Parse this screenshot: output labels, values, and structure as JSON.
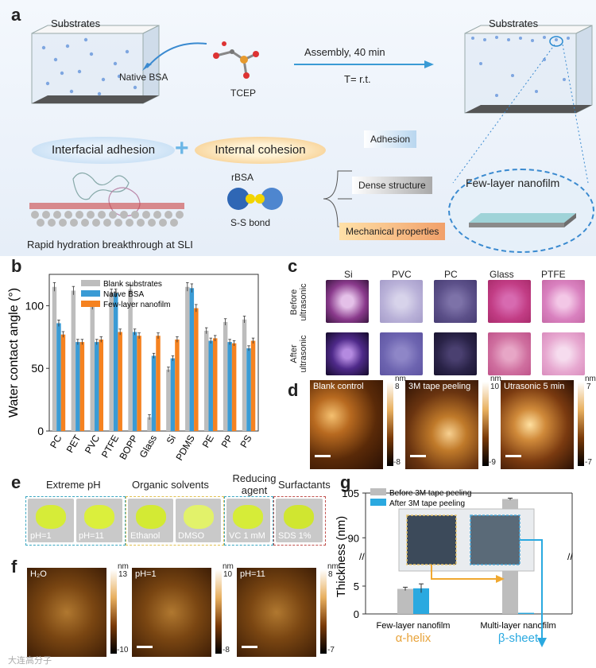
{
  "panel_a": {
    "label": "a",
    "substrates_left": "Substrates",
    "substrates_right": "Substrates",
    "native_bsa": "Native BSA",
    "tcep": "TCEP",
    "assembly": "Assembly, 40 min",
    "temperature": "T= r.t.",
    "interfacial_adhesion": "Interfacial adhesion",
    "plus": "+",
    "internal_cohesion": "Internal cohesion",
    "rbsa": "rBSA",
    "ss_bond": "S-S bond",
    "rapid_hydration": "Rapid hydration breakthrough at SLI",
    "adhesion": "Adhesion",
    "dense_structure": "Dense structure",
    "mechanical_properties": "Mechanical properties",
    "few_layer_nanofilm": "Few-layer nanofilm"
  },
  "panel_b": {
    "label": "b",
    "chart_data": {
      "type": "bar",
      "ylabel": "Water contact angle (°)",
      "ylim": [
        0,
        125
      ],
      "yticks": [
        0,
        50,
        100
      ],
      "categories": [
        "PC",
        "PET",
        "PVC",
        "PTFE",
        "BOPP",
        "Glass",
        "Si",
        "PDMS",
        "PE",
        "PP",
        "PS"
      ],
      "series": [
        {
          "name": "Blank substrates",
          "color": "#bdbdbd",
          "values": [
            115,
            112,
            100,
            110,
            113,
            11,
            49,
            115,
            80,
            87,
            89
          ]
        },
        {
          "name": "Native BSA",
          "color": "#3a9bd5",
          "values": [
            86,
            71,
            71,
            110,
            79,
            60,
            58,
            114,
            72,
            71,
            66
          ]
        },
        {
          "name": "Few-layer nanofilm",
          "color": "#f58220",
          "values": [
            77,
            71,
            73,
            79,
            76,
            76,
            73,
            98,
            74,
            70,
            72
          ]
        }
      ]
    }
  },
  "panel_c": {
    "label": "c",
    "columns": [
      "Si",
      "PVC",
      "PC",
      "Glass",
      "PTFE"
    ],
    "row_before_1": "Before",
    "row_before_2": "ultrasonic",
    "row_after_1": "After",
    "row_after_2": "ultrasonic"
  },
  "panel_d": {
    "label": "d",
    "images": [
      {
        "title": "Blank control",
        "max": "8",
        "min": "-8",
        "unit": "nm"
      },
      {
        "title": "3M tape peeling",
        "max": "10",
        "min": "-9",
        "unit": "nm"
      },
      {
        "title": "Utrasonic 5 min",
        "max": "7",
        "min": "-7",
        "unit": "nm"
      }
    ]
  },
  "panel_e": {
    "label": "e",
    "groups": [
      "Extreme pH",
      "Organic solvents",
      "Reducing agent",
      "Surfactants"
    ],
    "reducing_1": "Reducing",
    "reducing_2": "agent",
    "photos": [
      "pH=1",
      "pH=11",
      "Ethanol",
      "DMSO",
      "VC 1 mM",
      "SDS 1%"
    ]
  },
  "panel_f": {
    "label": "f",
    "images": [
      {
        "title": "H₂O",
        "max": "13",
        "min": "-10",
        "unit": "nm"
      },
      {
        "title": "pH=1",
        "max": "10",
        "min": "-8",
        "unit": "nm"
      },
      {
        "title": "pH=11",
        "max": "8",
        "min": "-7",
        "unit": "nm"
      }
    ]
  },
  "panel_g": {
    "label": "g",
    "chart_data": {
      "type": "bar",
      "ylabel": "Thickness (nm)",
      "broken_axis": true,
      "yticks_lower": [
        0,
        5
      ],
      "yticks_upper": [
        90,
        105
      ],
      "categories": [
        "Few-layer nanofilm",
        "Multi-layer nanofilm"
      ],
      "sublabels": [
        "α-helix",
        "β-sheet"
      ],
      "series": [
        {
          "name": "Before 3M tape peeling",
          "color": "#bdbdbd",
          "values": [
            4.5,
            103
          ]
        },
        {
          "name": "After 3M tape peeling",
          "color": "#2aa9e0",
          "values": [
            4.6,
            0.2
          ]
        }
      ]
    }
  },
  "watermark": "大连高分子"
}
